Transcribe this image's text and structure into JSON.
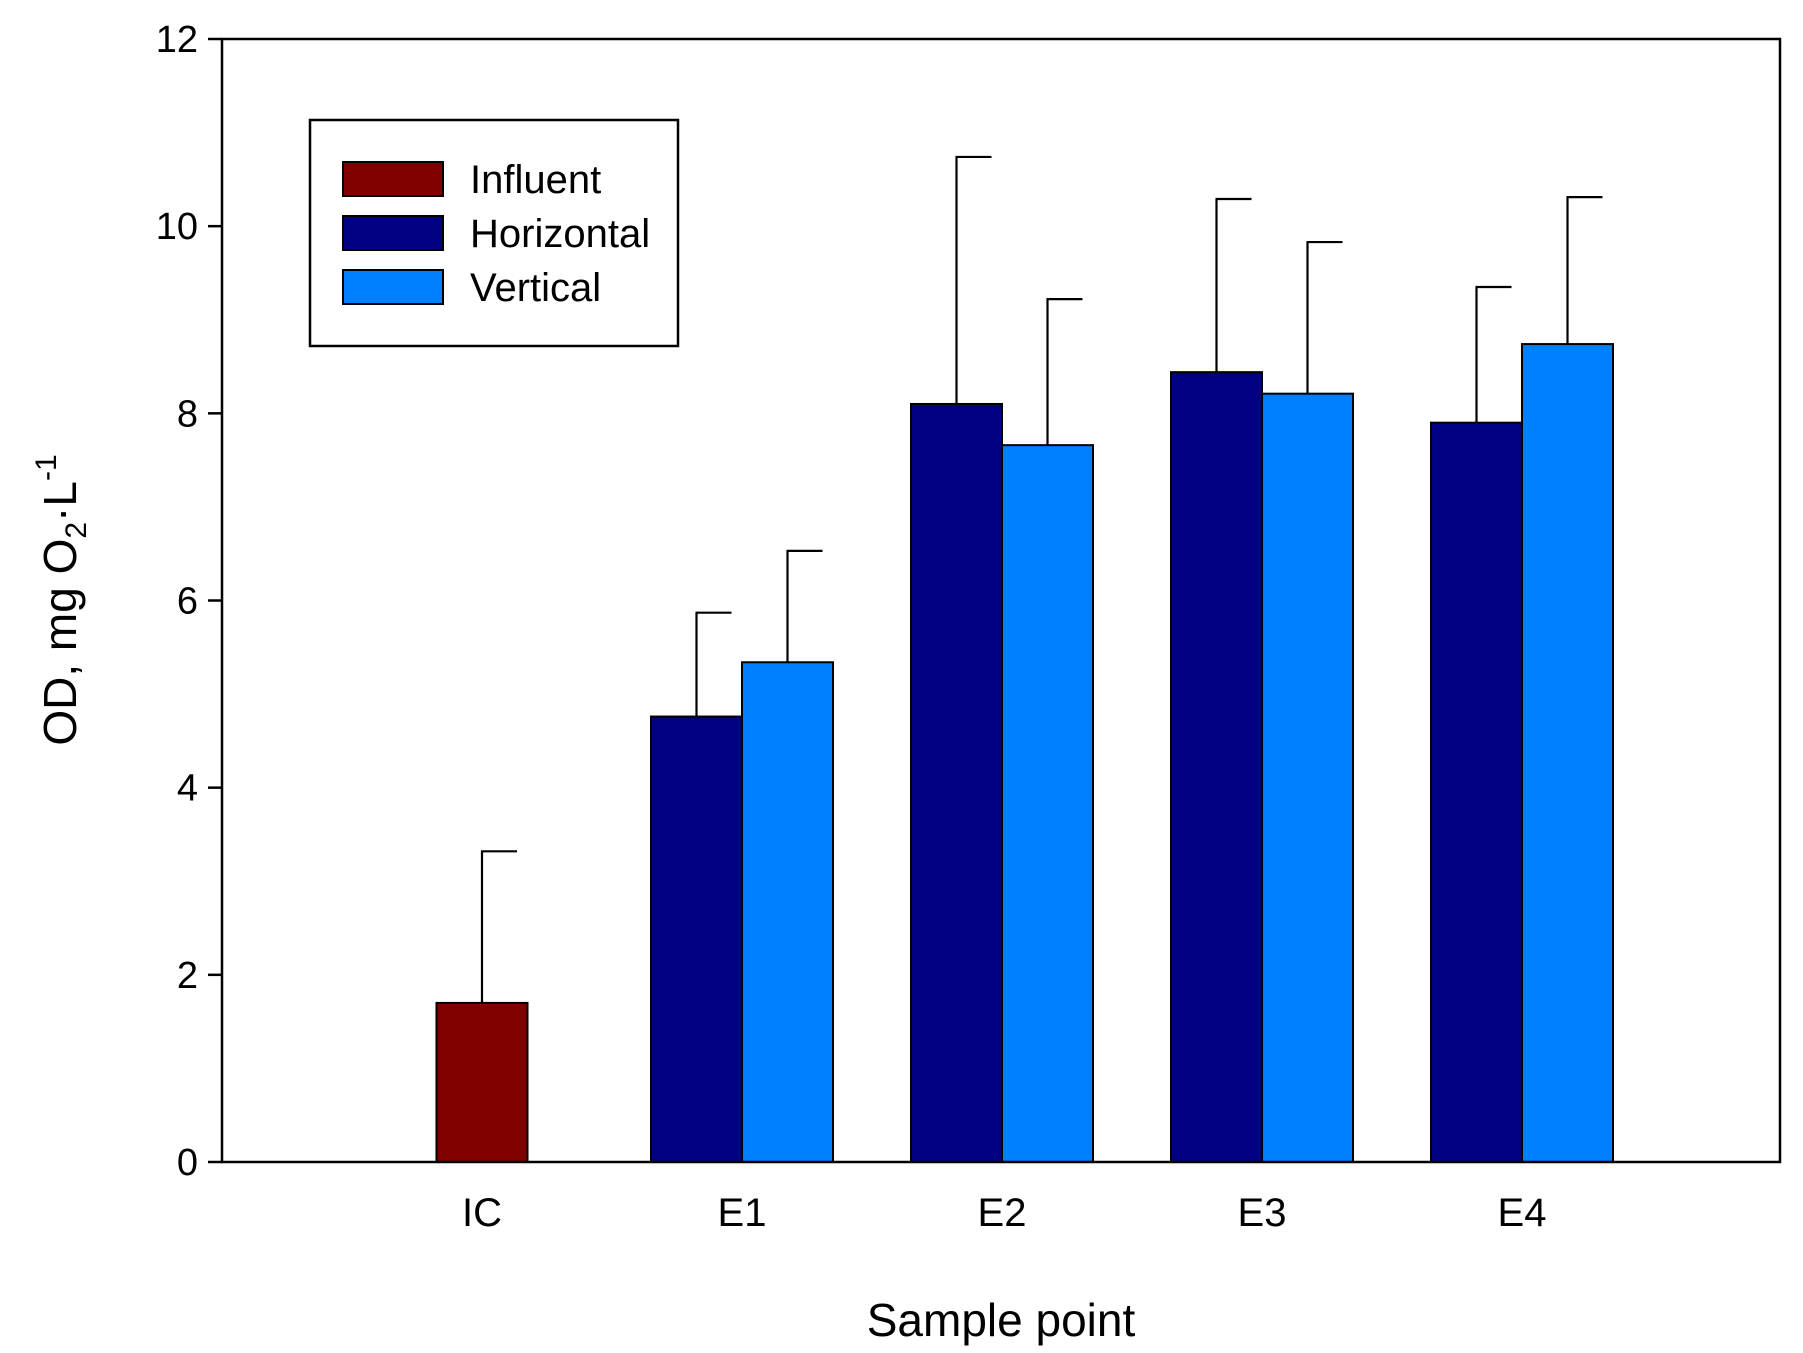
{
  "chart_data": {
    "type": "bar",
    "title": "",
    "xlabel": "Sample point",
    "ylabel": {
      "main": "OD, mg O",
      "sub": "2",
      "mid": "·L",
      "sup": "-1"
    },
    "categories": [
      "IC",
      "E1",
      "E2",
      "E3",
      "E4"
    ],
    "ylim": [
      0,
      12
    ],
    "yticks": [
      0,
      2,
      4,
      6,
      8,
      10,
      12
    ],
    "grid": false,
    "legend_position": "top-left",
    "series": [
      {
        "name": "Influent",
        "color": "#800000",
        "values": [
          1.7,
          null,
          null,
          null,
          null
        ],
        "errors": [
          1.62,
          null,
          null,
          null,
          null
        ]
      },
      {
        "name": "Horizontal",
        "color": "#000080",
        "values": [
          null,
          4.76,
          8.1,
          8.44,
          7.9
        ],
        "errors": [
          null,
          1.11,
          2.64,
          1.85,
          1.45
        ]
      },
      {
        "name": "Vertical",
        "color": "#0080ff",
        "values": [
          null,
          5.34,
          7.66,
          8.21,
          8.74
        ],
        "errors": [
          null,
          1.19,
          1.56,
          1.62,
          1.57
        ]
      }
    ]
  }
}
